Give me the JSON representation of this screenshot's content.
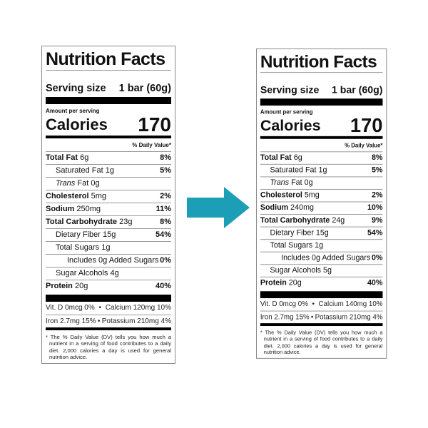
{
  "arrow_color": "#1c9fb6",
  "labels": [
    {
      "title": "Nutrition Facts",
      "serving_label": "Serving size",
      "serving_value": "1 bar (60g)",
      "amount_per_serving": "Amount per serving",
      "calories_label": "Calories",
      "calories_value": "170",
      "daily_value_header": "% Daily Value*",
      "rows": [
        {
          "name": "Total Fat",
          "amount": "6g",
          "dv": "8%",
          "bold": true,
          "indent": 0
        },
        {
          "name": "Saturated Fat",
          "amount": "1g",
          "dv": "5%",
          "bold": false,
          "indent": 1
        },
        {
          "italic": "Trans",
          "name": "Fat",
          "amount": "0g",
          "dv": "",
          "bold": false,
          "indent": 1
        },
        {
          "name": "Cholesterol",
          "amount": "5mg",
          "dv": "2%",
          "bold": true,
          "indent": 0
        },
        {
          "name": "Sodium",
          "amount": "250mg",
          "dv": "11%",
          "bold": true,
          "indent": 0
        },
        {
          "name": "Total Carbohydrate",
          "amount": "23g",
          "dv": "8%",
          "bold": true,
          "indent": 0
        },
        {
          "name": "Dietary Fiber",
          "amount": "15g",
          "dv": "54%",
          "bold": false,
          "indent": 1
        },
        {
          "name": "Total Sugars",
          "amount": "1g",
          "dv": "",
          "bold": false,
          "indent": 1
        },
        {
          "name": "Includes 0g Added Sugars",
          "amount": "",
          "dv": "0%",
          "bold": false,
          "indent": 2
        },
        {
          "name": "Sugar Alcohols",
          "amount": "4g",
          "dv": "",
          "bold": false,
          "indent": 1
        },
        {
          "name": "Protein",
          "amount": "20g",
          "dv": "40%",
          "bold": true,
          "indent": 0
        }
      ],
      "vitamins": [
        [
          "Vit. D 0mcg 0%",
          "•",
          "Calcium 120mg 10%"
        ],
        [
          "Iron 2.7mg 15%",
          "•",
          "Potassium 210mg 4%"
        ]
      ],
      "footnote": "* The % Daily Value (DV) tells you how much a nutrient in a serving of food contributes to a daily diet. 2,000 calories a day is used for general nutrition advice."
    },
    {
      "title": "Nutrition Facts",
      "serving_label": "Serving size",
      "serving_value": "1 bar (60g)",
      "amount_per_serving": "Amount per serving",
      "calories_label": "Calories",
      "calories_value": "170",
      "daily_value_header": "% Daily Value*",
      "rows": [
        {
          "name": "Total Fat",
          "amount": "6g",
          "dv": "8%",
          "bold": true,
          "indent": 0
        },
        {
          "name": "Saturated Fat",
          "amount": "1g",
          "dv": "5%",
          "bold": false,
          "indent": 1
        },
        {
          "italic": "Trans",
          "name": "Fat",
          "amount": "0g",
          "dv": "",
          "bold": false,
          "indent": 1
        },
        {
          "name": "Cholesterol",
          "amount": "5mg",
          "dv": "2%",
          "bold": true,
          "indent": 0
        },
        {
          "name": "Sodium",
          "amount": "240mg",
          "dv": "10%",
          "bold": true,
          "indent": 0
        },
        {
          "name": "Total Carbohydrate",
          "amount": "24g",
          "dv": "9%",
          "bold": true,
          "indent": 0
        },
        {
          "name": "Dietary Fiber",
          "amount": "15g",
          "dv": "54%",
          "bold": false,
          "indent": 1
        },
        {
          "name": "Total Sugars",
          "amount": "1g",
          "dv": "",
          "bold": false,
          "indent": 1
        },
        {
          "name": "Includes 0g Added Sugars",
          "amount": "",
          "dv": "0%",
          "bold": false,
          "indent": 2
        },
        {
          "name": "Sugar Alcohols",
          "amount": "5g",
          "dv": "",
          "bold": false,
          "indent": 1
        },
        {
          "name": "Protein",
          "amount": "20g",
          "dv": "40%",
          "bold": true,
          "indent": 0
        }
      ],
      "vitamins": [
        [
          "Vit. D 0mcg 0%",
          "•",
          "Calcium 140mg 10%"
        ],
        [
          "Iron 2.7mg 15%",
          "•",
          "Potassium 210mg 4%"
        ]
      ],
      "footnote": "* The % Daily Value (DV) tells you how much a nutrient in a serving of food contributes to a daily diet. 2,000 calories a day is used for general nutrition advice."
    }
  ]
}
